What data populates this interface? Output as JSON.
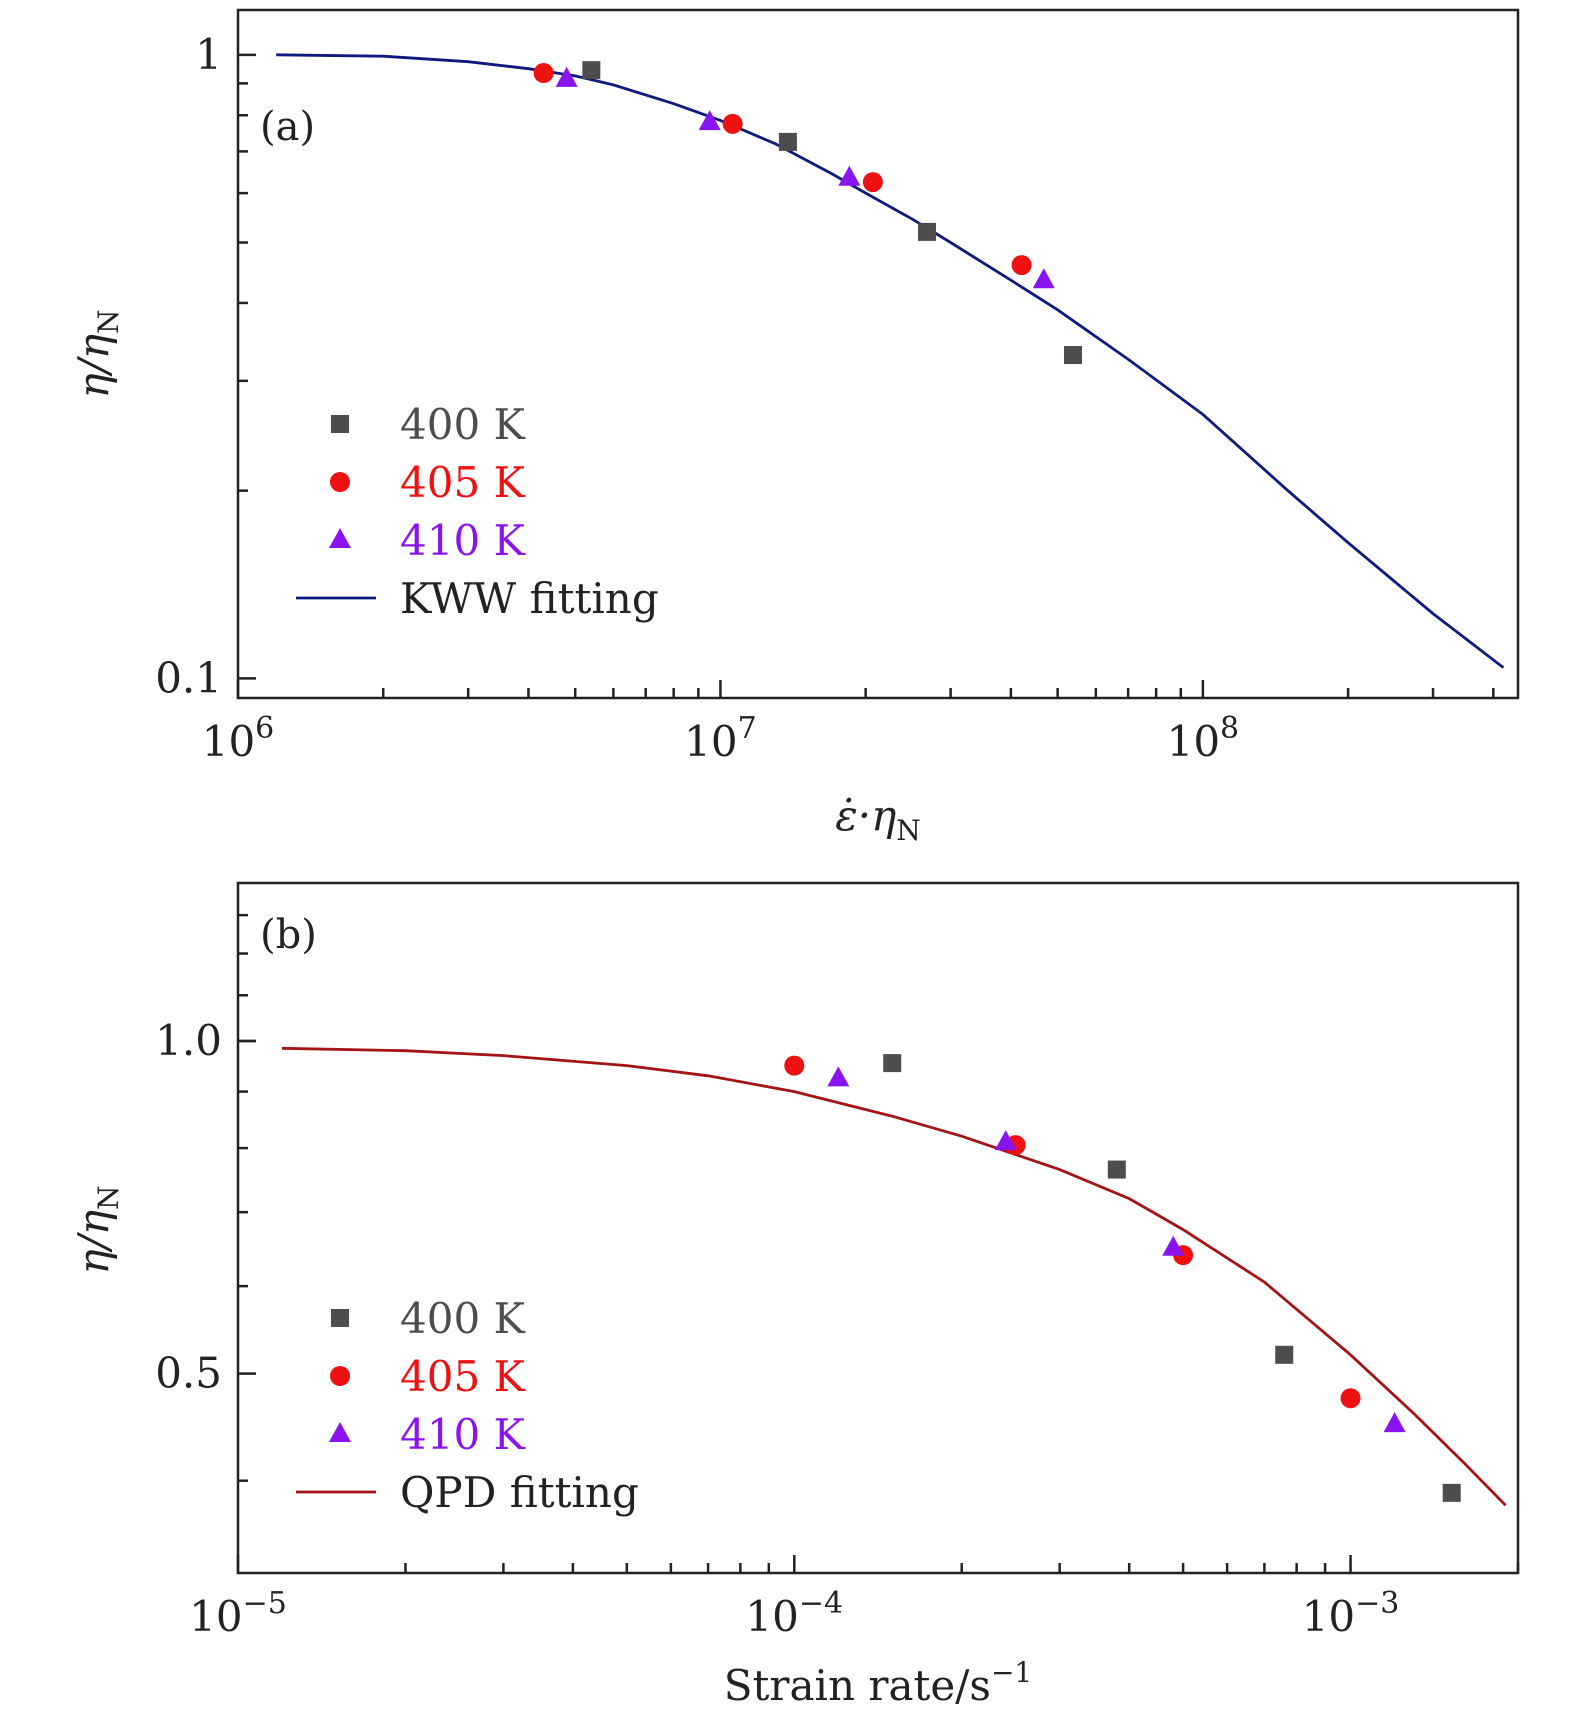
{
  "chart_data": [
    {
      "panel": "(a)",
      "type": "scatter",
      "xscale": "log",
      "yscale": "log",
      "xlim": [
        1000000,
        450000000
      ],
      "ylim": [
        0.093,
        1.18
      ],
      "xlabel": "ε̇·η",
      "xlabel_sub": "N",
      "ylabel": "η/η",
      "ylabel_sub": "N",
      "x_ticks": [
        {
          "value": 1000000,
          "base": "10",
          "exp": "6"
        },
        {
          "value": 10000000,
          "base": "10",
          "exp": "7"
        },
        {
          "value": 100000000,
          "base": "10",
          "exp": "8"
        }
      ],
      "y_ticks": [
        {
          "value": 0.1,
          "label": "0.1"
        },
        {
          "value": 1,
          "label": "1"
        }
      ],
      "legend_position": "bottom-left",
      "series": [
        {
          "name": "400 K",
          "marker": "square",
          "color": "#4d4d4d",
          "points": [
            [
              5400000,
              0.945
            ],
            [
              13800000,
              0.725
            ],
            [
              26800000,
              0.52
            ],
            [
              53800000,
              0.33
            ]
          ]
        },
        {
          "name": "405 K",
          "marker": "circle",
          "color": "#ee1111",
          "points": [
            [
              4300000,
              0.935
            ],
            [
              10600000,
              0.775
            ],
            [
              20700000,
              0.625
            ],
            [
              42100000,
              0.46
            ]
          ]
        },
        {
          "name": "410 K",
          "marker": "triangle",
          "color": "#8a14f0",
          "points": [
            [
              4800000,
              0.915
            ],
            [
              9500000,
              0.78
            ],
            [
              18500000,
              0.635
            ],
            [
              46800000,
              0.435
            ]
          ]
        },
        {
          "name": "KWW fitting",
          "marker": "line",
          "color": "#0e1a7c",
          "points": [
            [
              1200000,
              1.0
            ],
            [
              2000000,
              0.995
            ],
            [
              3000000,
              0.975
            ],
            [
              4000000,
              0.95
            ],
            [
              5000000,
              0.925
            ],
            [
              6000000,
              0.895
            ],
            [
              8000000,
              0.835
            ],
            [
              10000000,
              0.785
            ],
            [
              13000000,
              0.72
            ],
            [
              17000000,
              0.645
            ],
            [
              20000000,
              0.6
            ],
            [
              25000000,
              0.545
            ],
            [
              30000000,
              0.5
            ],
            [
              40000000,
              0.435
            ],
            [
              50000000,
              0.39
            ],
            [
              70000000,
              0.325
            ],
            [
              100000000,
              0.265
            ],
            [
              150000000,
              0.2
            ],
            [
              200000000,
              0.165
            ],
            [
              300000000,
              0.127
            ],
            [
              420000000,
              0.104
            ]
          ]
        }
      ]
    },
    {
      "panel": "(b)",
      "type": "scatter",
      "xscale": "log",
      "yscale": "log",
      "xlim": [
        1e-05,
        0.002
      ],
      "ylim": [
        0.33,
        1.39
      ],
      "xlabel": "Strain rate/s",
      "xlabel_sup": "−1",
      "ylabel": "η/η",
      "ylabel_sub": "N",
      "x_ticks": [
        {
          "value": 1e-05,
          "base": "10",
          "exp": "−5"
        },
        {
          "value": 0.0001,
          "base": "10",
          "exp": "−4"
        },
        {
          "value": 0.001,
          "base": "10",
          "exp": "−3"
        }
      ],
      "y_ticks": [
        {
          "value": 0.5,
          "label": "0.5"
        },
        {
          "value": 1.0,
          "label": "1.0"
        }
      ],
      "legend_position": "bottom-left",
      "series": [
        {
          "name": "400 K",
          "marker": "square",
          "color": "#4d4d4d",
          "points": [
            [
              0.00015,
              0.955
            ],
            [
              0.00038,
              0.765
            ],
            [
              0.00076,
              0.52
            ],
            [
              0.00152,
              0.39
            ]
          ]
        },
        {
          "name": "405 K",
          "marker": "circle",
          "color": "#ee1111",
          "points": [
            [
              0.0001,
              0.95
            ],
            [
              0.00025,
              0.805
            ],
            [
              0.0005,
              0.64
            ],
            [
              0.001,
              0.475
            ]
          ]
        },
        {
          "name": "410 K",
          "marker": "triangle",
          "color": "#8a14f0",
          "points": [
            [
              0.00012,
              0.925
            ],
            [
              0.00024,
              0.81
            ],
            [
              0.00048,
              0.65
            ],
            [
              0.0012,
              0.45
            ]
          ]
        },
        {
          "name": "QPD fitting",
          "marker": "line",
          "color": "#a41414",
          "points": [
            [
              1.2e-05,
              0.985
            ],
            [
              2e-05,
              0.98
            ],
            [
              3e-05,
              0.97
            ],
            [
              5e-05,
              0.95
            ],
            [
              7e-05,
              0.93
            ],
            [
              0.0001,
              0.9
            ],
            [
              0.00015,
              0.855
            ],
            [
              0.0002,
              0.82
            ],
            [
              0.0003,
              0.765
            ],
            [
              0.0004,
              0.72
            ],
            [
              0.0005,
              0.675
            ],
            [
              0.0007,
              0.605
            ],
            [
              0.001,
              0.52
            ],
            [
              0.0013,
              0.46
            ],
            [
              0.0016,
              0.415
            ],
            [
              0.0019,
              0.38
            ]
          ]
        }
      ]
    }
  ]
}
